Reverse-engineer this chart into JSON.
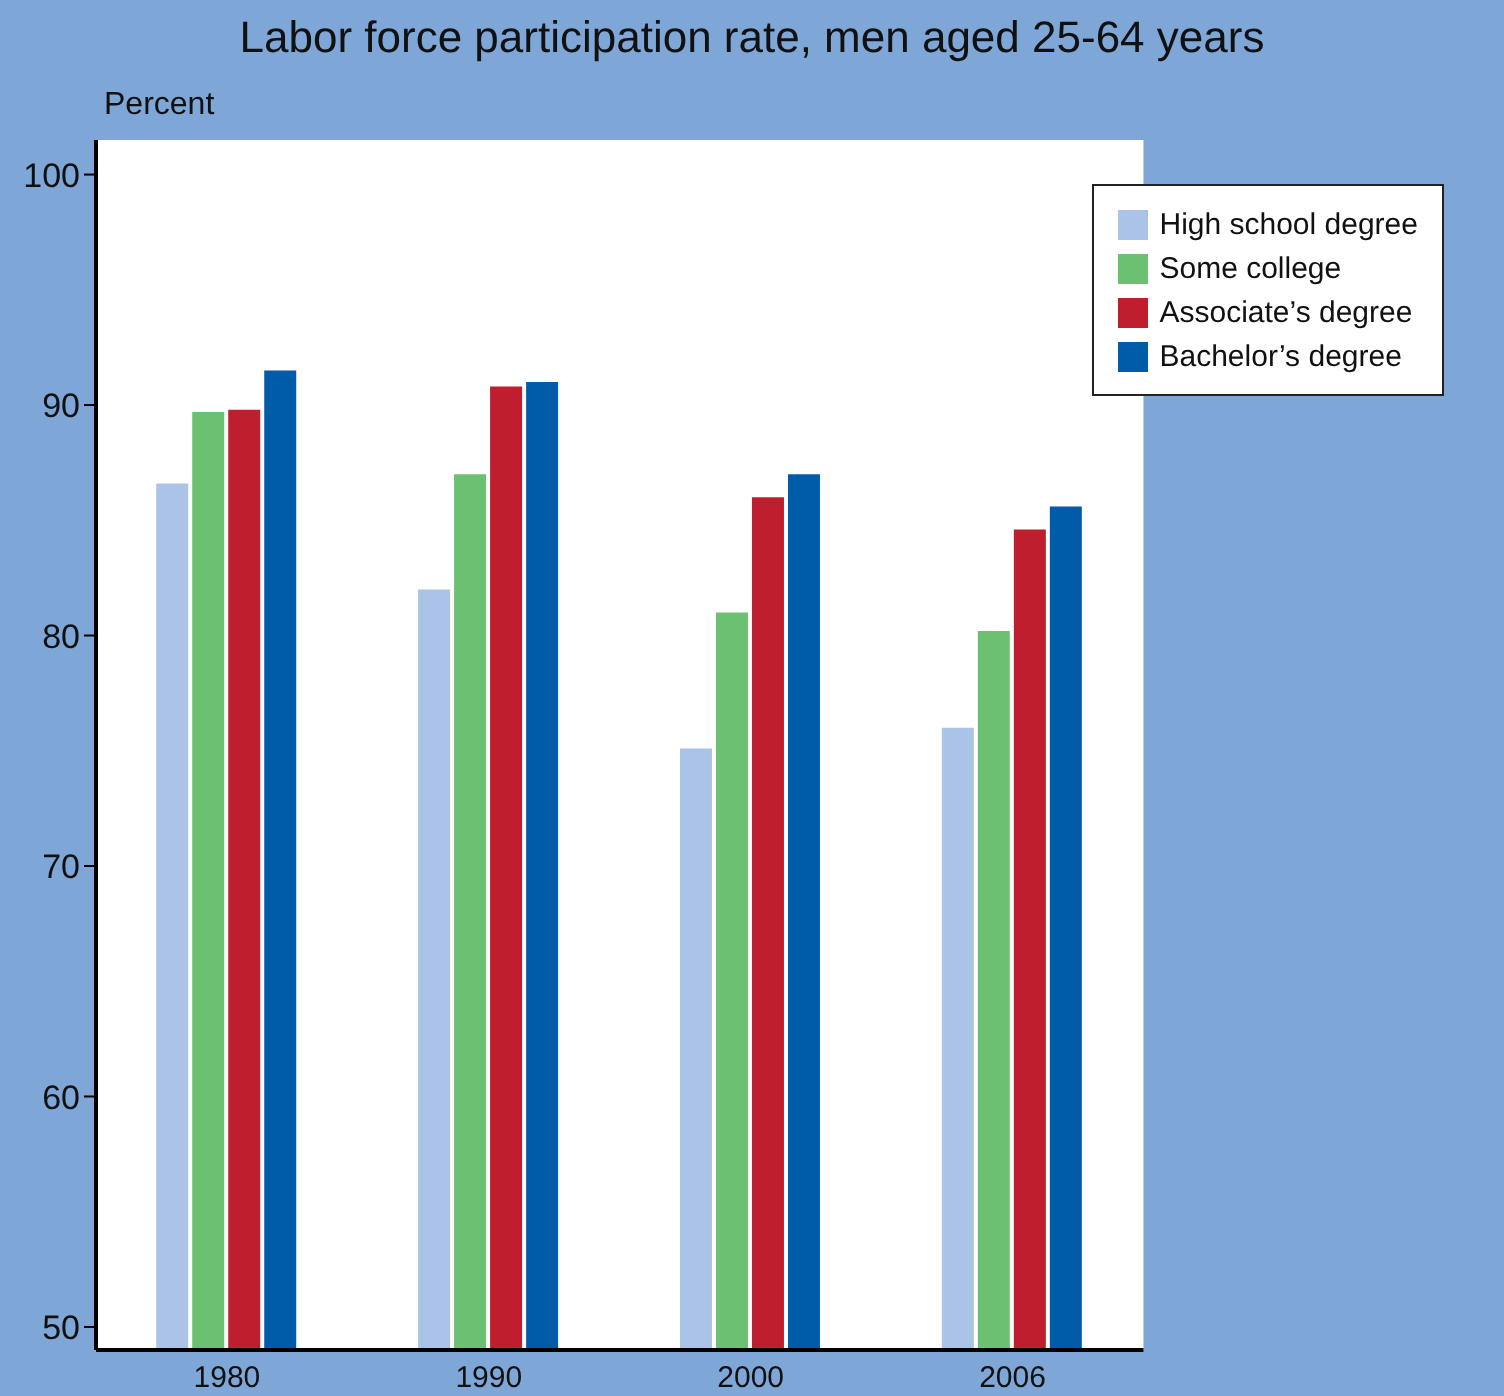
{
  "chart_data": {
    "type": "bar",
    "title": "Labor force participation rate, men aged 25-64 years",
    "ylabel": "Percent",
    "categories": [
      "1980",
      "1990",
      "2000",
      "2006"
    ],
    "series": [
      {
        "name": "High school degree",
        "color": "#aac3e6",
        "values": [
          86.6,
          82.0,
          75.1,
          76.0
        ]
      },
      {
        "name": "Some college",
        "color": "#6cc071",
        "values": [
          89.7,
          87.0,
          81.0,
          80.2
        ]
      },
      {
        "name": "Associate’s degree",
        "color": "#be1e2d",
        "values": [
          89.8,
          90.8,
          86.0,
          84.6
        ]
      },
      {
        "name": "Bachelor’s degree",
        "color": "#005ca9",
        "values": [
          91.5,
          91.0,
          87.0,
          85.6
        ]
      }
    ],
    "ylim": [
      49,
      101.5
    ],
    "yticks": [
      50,
      60,
      70,
      80,
      90,
      100
    ],
    "grid": false,
    "legend": "top right"
  }
}
